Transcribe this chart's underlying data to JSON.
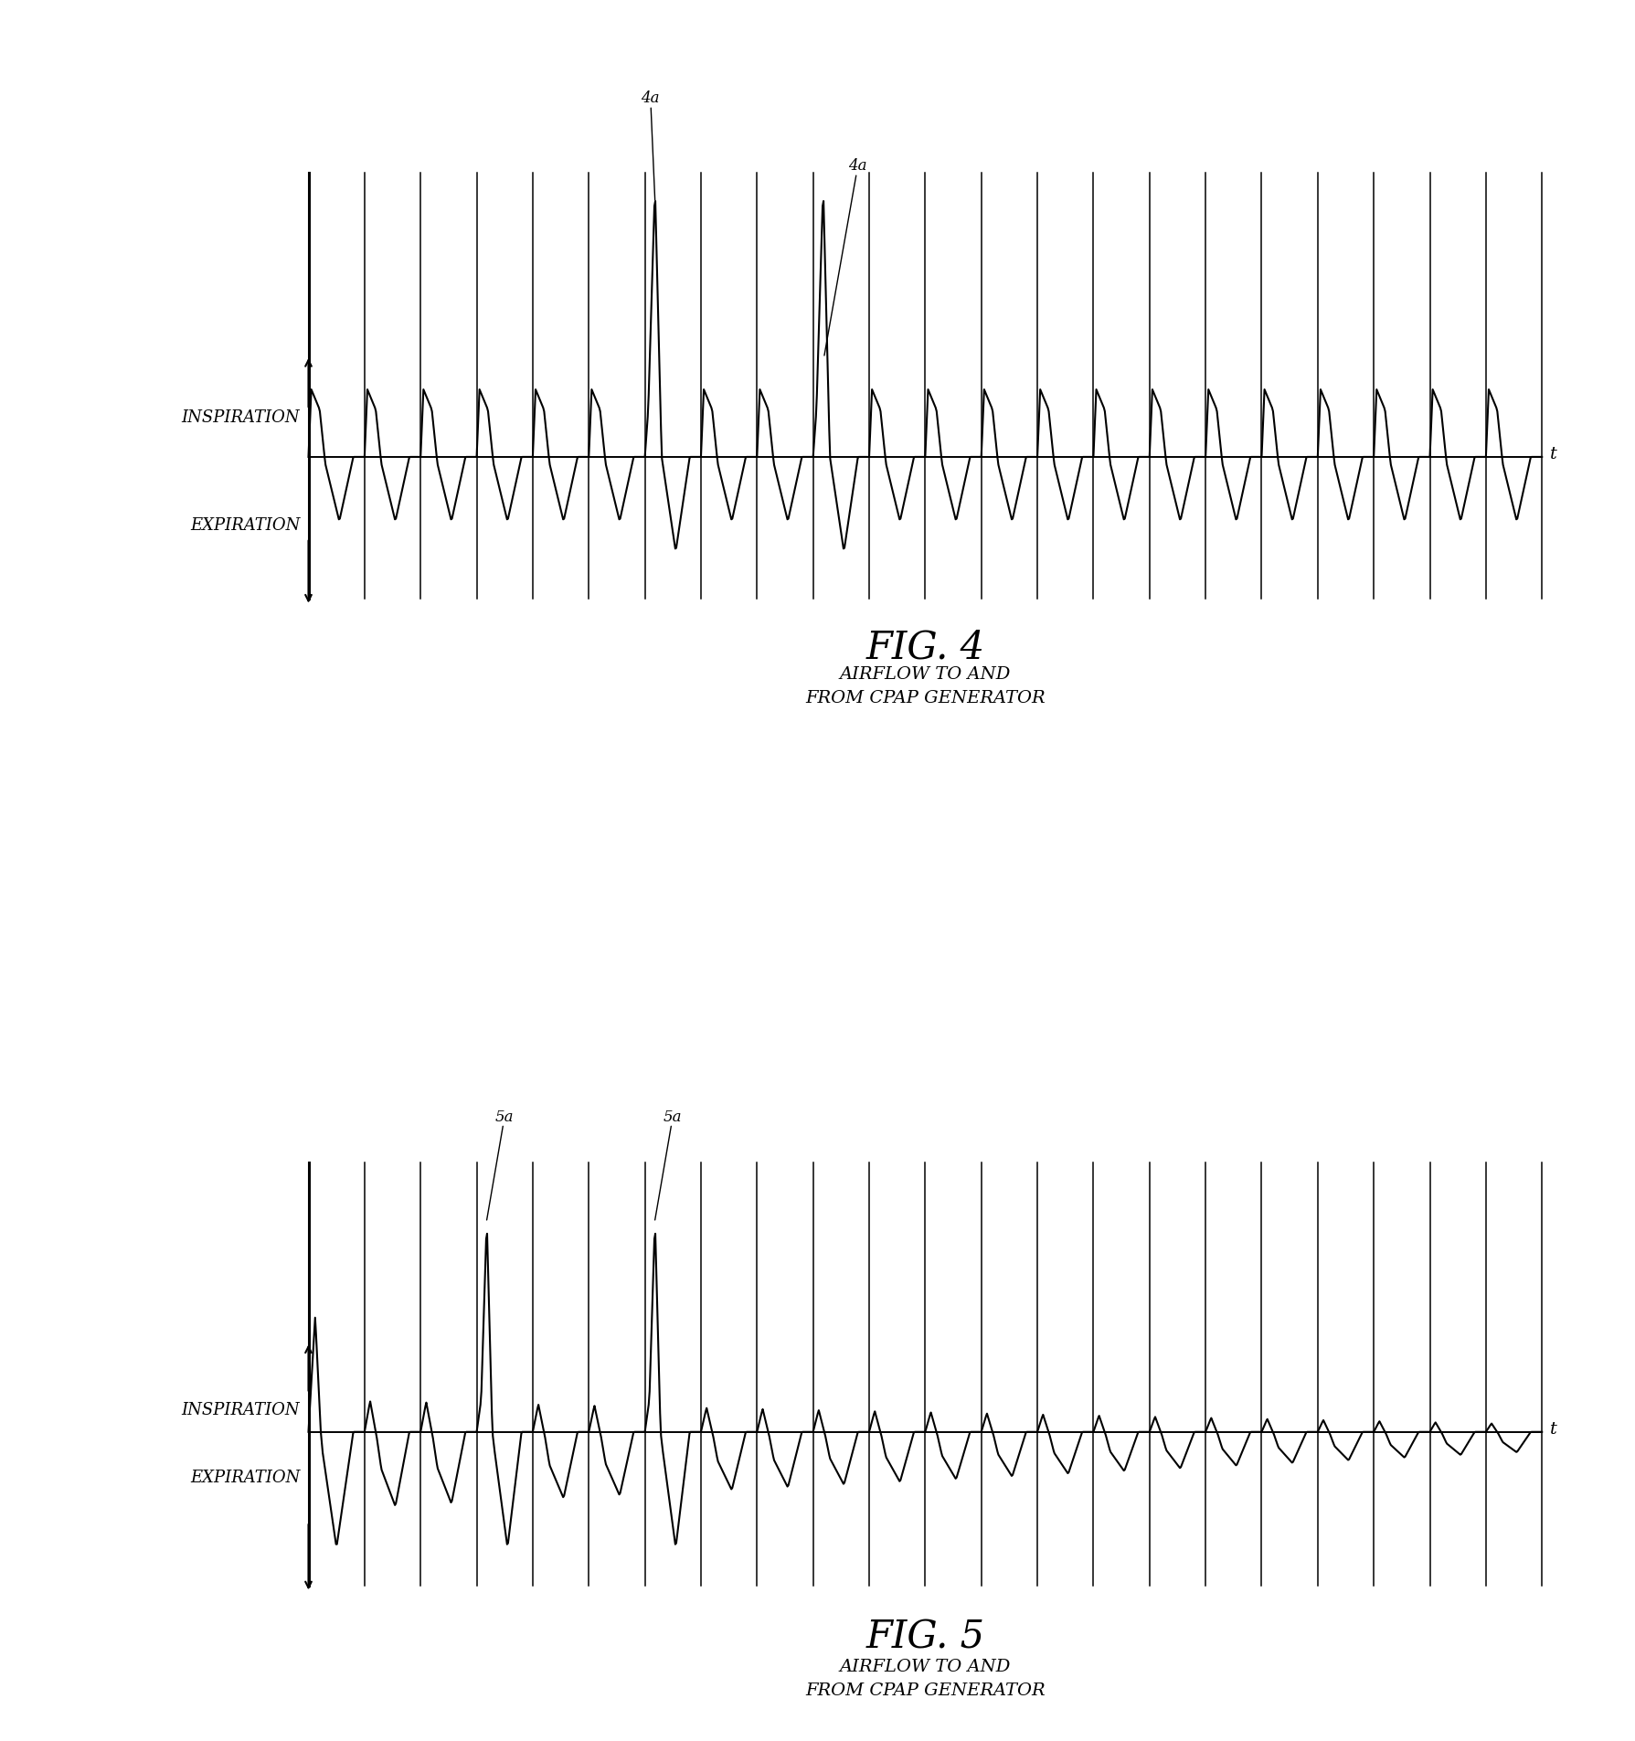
{
  "fig4_title": "FIG. 4",
  "fig4_caption": "AIRFLOW TO AND\nFROM CPAP GENERATOR",
  "fig5_title": "FIG. 5",
  "fig5_caption": "AIRFLOW TO AND\nFROM CPAP GENERATOR",
  "label_inspiration": "INSPIRATION",
  "label_expiration": "EXPIRATION",
  "label_t": "t",
  "label_4a": "4a",
  "label_5a": "5a",
  "bg_color": "#ffffff",
  "line_color": "#000000",
  "num_cycles": 22,
  "fig4_spike_cycles": [
    6,
    9
  ],
  "fig5_spike_cycles": [
    3,
    6
  ],
  "fig5_first_big": 0
}
